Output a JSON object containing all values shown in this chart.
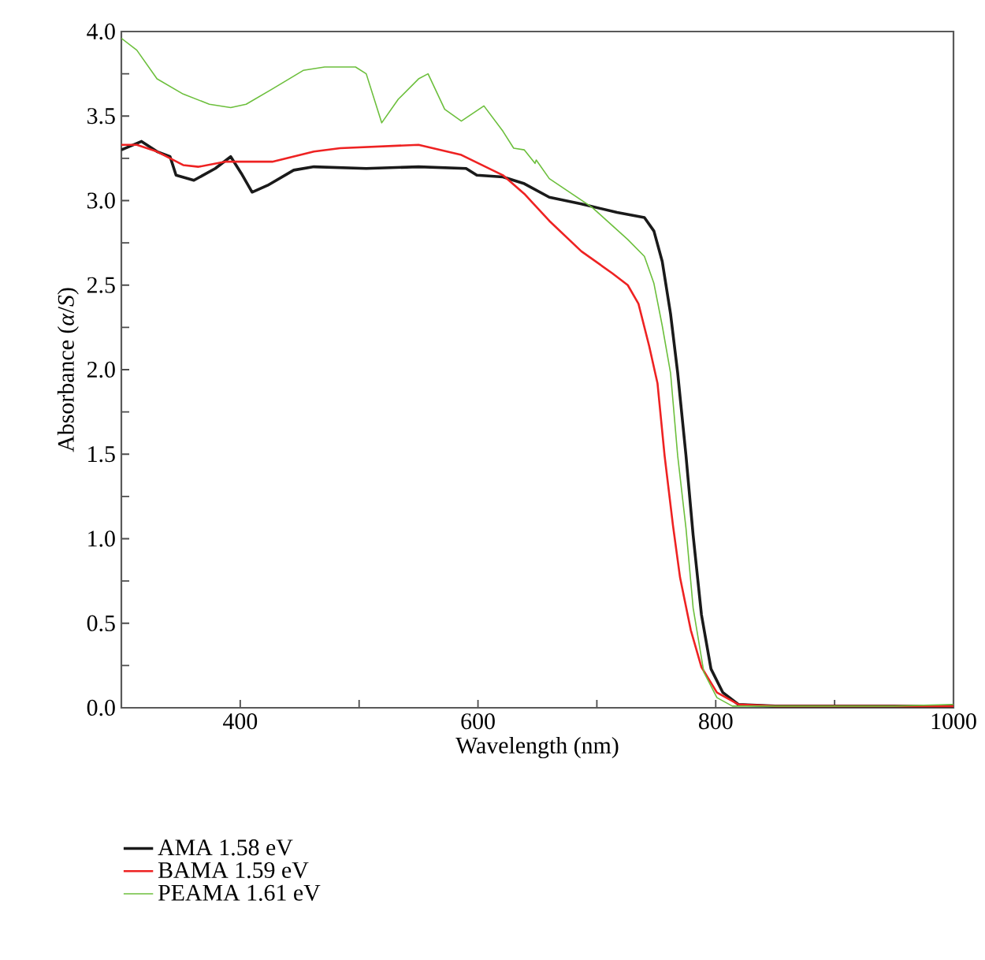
{
  "chart_data": {
    "type": "line",
    "xlabel": "Wavelength (nm)",
    "ylabel": "Absorbance (*α*/*S*)",
    "xlim": [
      300,
      1000
    ],
    "ylim": [
      0,
      4
    ],
    "xticks": [
      {
        "value": 400,
        "label": "400"
      },
      {
        "value": 500,
        "label": null
      },
      {
        "value": 600,
        "label": "600"
      },
      {
        "value": 700,
        "label": null
      },
      {
        "value": 800,
        "label": "800"
      },
      {
        "value": 900,
        "label": null
      },
      {
        "value": 1000,
        "label": "1000"
      }
    ],
    "yticks": [
      {
        "value": 0,
        "label": "0.0"
      },
      {
        "value": 0.25,
        "label": null
      },
      {
        "value": 0.5,
        "label": "0.5"
      },
      {
        "value": 0.75,
        "label": null
      },
      {
        "value": 1,
        "label": "1.0"
      },
      {
        "value": 1.25,
        "label": null
      },
      {
        "value": 1.5,
        "label": "1.5"
      },
      {
        "value": 1.75,
        "label": null
      },
      {
        "value": 2,
        "label": "2.0"
      },
      {
        "value": 2.25,
        "label": null
      },
      {
        "value": 2.5,
        "label": "2.5"
      },
      {
        "value": 2.75,
        "label": null
      },
      {
        "value": 3,
        "label": "3.0"
      },
      {
        "value": 3.25,
        "label": null
      },
      {
        "value": 3.5,
        "label": "3.5"
      },
      {
        "value": 3.75,
        "label": null
      },
      {
        "value": 4,
        "label": "4.0"
      }
    ],
    "legend": "bottom left",
    "grid": false,
    "marker": "none",
    "line_style": "solid",
    "series": [
      {
        "name": "AMA 1.58 eV",
        "color": "#1a1a1a",
        "x": [
          300,
          317,
          330,
          341,
          346,
          361,
          379,
          392,
          401,
          410,
          423,
          445,
          462,
          506,
          550,
          590,
          599,
          621,
          639,
          660,
          687,
          717,
          740,
          748,
          755,
          762,
          768,
          775,
          781,
          788,
          796,
          806,
          819,
          850,
          900,
          950,
          1000
        ],
        "values": [
          3.3,
          3.35,
          3.29,
          3.26,
          3.15,
          3.12,
          3.19,
          3.26,
          3.16,
          3.05,
          3.09,
          3.18,
          3.2,
          3.19,
          3.2,
          3.19,
          3.15,
          3.14,
          3.1,
          3.02,
          2.98,
          2.93,
          2.9,
          2.82,
          2.64,
          2.33,
          1.98,
          1.49,
          1.02,
          0.55,
          0.23,
          0.09,
          0.02,
          0.01,
          0.01,
          0.01,
          0.01
        ]
      },
      {
        "name": "BAMA 1.59 eV",
        "color": "#ee2222",
        "x": [
          300,
          313,
          330,
          352,
          365,
          387,
          427,
          462,
          484,
          550,
          586,
          621,
          639,
          660,
          687,
          713,
          726,
          735,
          744,
          751,
          757,
          764,
          770,
          779,
          788,
          801,
          819,
          850,
          900,
          950,
          1000
        ],
        "values": [
          3.33,
          3.33,
          3.29,
          3.21,
          3.2,
          3.23,
          3.23,
          3.29,
          3.31,
          3.33,
          3.27,
          3.15,
          3.04,
          2.88,
          2.7,
          2.57,
          2.5,
          2.39,
          2.14,
          1.92,
          1.49,
          1.08,
          0.77,
          0.46,
          0.24,
          0.09,
          0.02,
          0.01,
          0.01,
          0.01,
          0.01
        ]
      },
      {
        "name": "PEAMA 1.61 eV",
        "color": "#6cbf3c",
        "x": [
          300,
          313,
          330,
          352,
          374,
          392,
          405,
          427,
          453,
          471,
          497,
          506,
          519,
          533,
          550,
          558,
          572,
          586,
          605,
          621,
          630,
          639,
          648,
          649,
          660,
          696,
          726,
          740,
          748,
          755,
          762,
          768,
          775,
          781,
          790,
          801,
          814,
          850,
          900,
          950,
          1000
        ],
        "values": [
          3.96,
          3.89,
          3.72,
          3.63,
          3.57,
          3.55,
          3.57,
          3.66,
          3.77,
          3.79,
          3.79,
          3.75,
          3.46,
          3.6,
          3.72,
          3.75,
          3.54,
          3.47,
          3.56,
          3.41,
          3.31,
          3.3,
          3.22,
          3.24,
          3.13,
          2.96,
          2.77,
          2.67,
          2.51,
          2.26,
          1.98,
          1.49,
          1.06,
          0.59,
          0.21,
          0.06,
          0.01,
          0.01,
          0.01,
          0.01,
          0.02
        ]
      }
    ]
  }
}
